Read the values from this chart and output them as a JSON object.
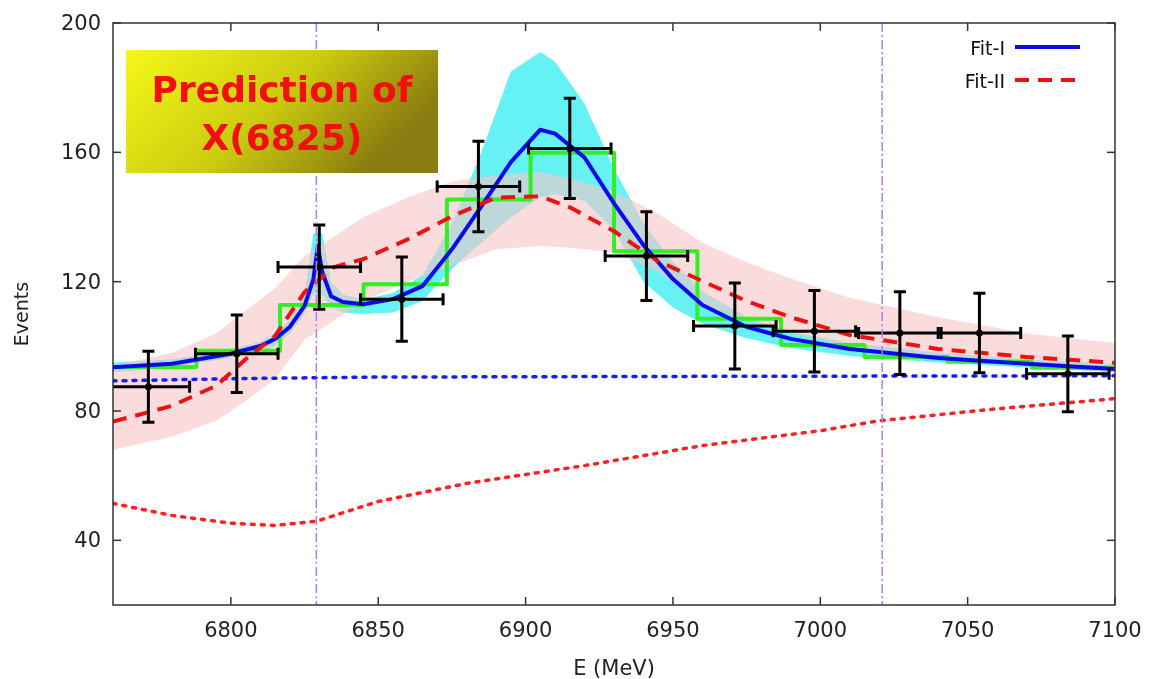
{
  "chart_data": {
    "type": "line",
    "xlabel": "E (MeV)",
    "ylabel": "Events",
    "xlim": [
      6760,
      7100
    ],
    "ylim": [
      20,
      200
    ],
    "xticks": [
      6800,
      6850,
      6900,
      6950,
      7000,
      7050,
      7100
    ],
    "yticks": [
      40,
      80,
      120,
      160,
      200
    ],
    "legend": "top right",
    "annotations": [
      "Prediction of X(6825)"
    ],
    "ref_lines": [
      {
        "axis": "x",
        "value": 6829,
        "color": "#b07cf0",
        "line_style": "dashed"
      },
      {
        "axis": "x",
        "value": 7021,
        "color": "#b07cf0",
        "line_style": "dashed"
      }
    ],
    "series": [
      {
        "name": "Fit-I",
        "color": "#0a0aee",
        "line_style": "solid",
        "x": [
          6760,
          6780,
          6800,
          6810,
          6815,
          6820,
          6825,
          6828,
          6829.5,
          6831,
          6834,
          6838,
          6845,
          6855,
          6865,
          6875,
          6885,
          6895,
          6905,
          6910,
          6920,
          6930,
          6940,
          6950,
          6960,
          6975,
          6990,
          7010,
          7040,
          7070,
          7100
        ],
        "values": [
          93.5,
          94.6,
          97.7,
          100.1,
          102.3,
          106,
          112.5,
          120.8,
          131,
          123,
          115.5,
          113.7,
          113,
          114.6,
          118.6,
          130,
          143.3,
          157,
          167,
          165.8,
          158.4,
          144.2,
          131.3,
          120.8,
          112.8,
          106,
          102.3,
          99.2,
          96.4,
          94.6,
          93
        ],
        "lower": [
          92,
          93.5,
          96.5,
          98.5,
          100,
          104,
          110,
          116,
          null,
          116,
          112,
          110.5,
          110,
          110.5,
          114,
          124,
          132,
          140,
          146,
          147,
          145,
          136,
          120,
          112,
          107,
          102.5,
          99.5,
          97,
          95,
          93.5,
          92
        ],
        "upper": [
          95,
          96,
          99,
          101.5,
          104,
          108,
          116,
          135,
          null,
          135,
          120,
          116,
          114.5,
          116.5,
          122,
          138,
          160,
          185,
          191,
          188,
          175,
          155,
          138,
          126,
          117,
          109,
          104.5,
          101,
          98,
          96,
          94.5
        ]
      },
      {
        "name": "Fit-II",
        "color": "#ee1111",
        "line_style": "dashed",
        "x": [
          6760,
          6780,
          6795,
          6805,
          6815,
          6825,
          6835,
          6845,
          6860,
          6875,
          6890,
          6905,
          6915,
          6930,
          6945,
          6960,
          6975,
          6990,
          7010,
          7040,
          7070,
          7100
        ],
        "values": [
          76.7,
          81.6,
          87.8,
          96,
          103.2,
          116.8,
          124.5,
          127,
          133.1,
          140.2,
          146,
          146.4,
          143,
          135.6,
          126.3,
          120.2,
          114,
          109,
          103.5,
          99.2,
          96.7,
          94.9
        ],
        "lower": [
          68,
          72,
          77,
          83,
          90,
          102,
          108,
          114,
          120,
          125,
          130,
          131,
          130.5,
          129,
          123,
          113,
          108,
          104,
          100,
          96,
          94,
          92
        ],
        "upper": [
          94,
          98,
          104,
          111,
          118,
          128,
          134,
          140,
          146,
          151,
          153,
          154,
          152,
          148,
          141,
          132,
          126,
          121,
          115,
          109,
          104,
          101
        ]
      },
      {
        "color": "#1a1aff",
        "line_style": "dotted",
        "x": [
          6760,
          6800,
          6850,
          6950,
          7100
        ],
        "values": [
          89.3,
          90,
          90.5,
          90.7,
          90.9
        ]
      },
      {
        "color": "#ff2020",
        "line_style": "dotted",
        "x": [
          6760,
          6780,
          6800,
          6815,
          6829,
          6850,
          6880,
          6920,
          6960,
          7000,
          7020,
          7060,
          7100
        ],
        "values": [
          51.4,
          47.7,
          45.3,
          44.6,
          45.9,
          52,
          57.6,
          63.1,
          69.3,
          73.9,
          77,
          80.7,
          83.8
        ]
      },
      {
        "type": "histogram",
        "color": "#33ee22",
        "bins": [
          6760,
          6788.3,
          6816.7,
          6845,
          6873.3,
          6901.7,
          6930,
          6958.3,
          6986.7,
          7015,
          7043.3,
          7071.7,
          7100
        ],
        "values": [
          93.6,
          98.6,
          112.8,
          119.2,
          145.4,
          159.9,
          129.4,
          108.5,
          100.4,
          96.7,
          95.2,
          93.4
        ]
      },
      {
        "type": "scatter",
        "color": "#000000",
        "marker": "circle",
        "x": [
          6772,
          6802,
          6830,
          6858,
          6884,
          6915,
          6941,
          6971,
          6998,
          7027,
          7054,
          7084
        ],
        "values": [
          87.5,
          97.7,
          124.5,
          114.6,
          149.4,
          161.2,
          127.9,
          106.3,
          104.7,
          104.1,
          104.1,
          91.5
        ],
        "xerrors": [
          14,
          14,
          14,
          14,
          14,
          14,
          14,
          14,
          14,
          14,
          14,
          14
        ],
        "errors": [
          11,
          12,
          13,
          13,
          14,
          15.5,
          13.7,
          13.3,
          12.6,
          12.8,
          12.3,
          11.7
        ]
      }
    ]
  }
}
